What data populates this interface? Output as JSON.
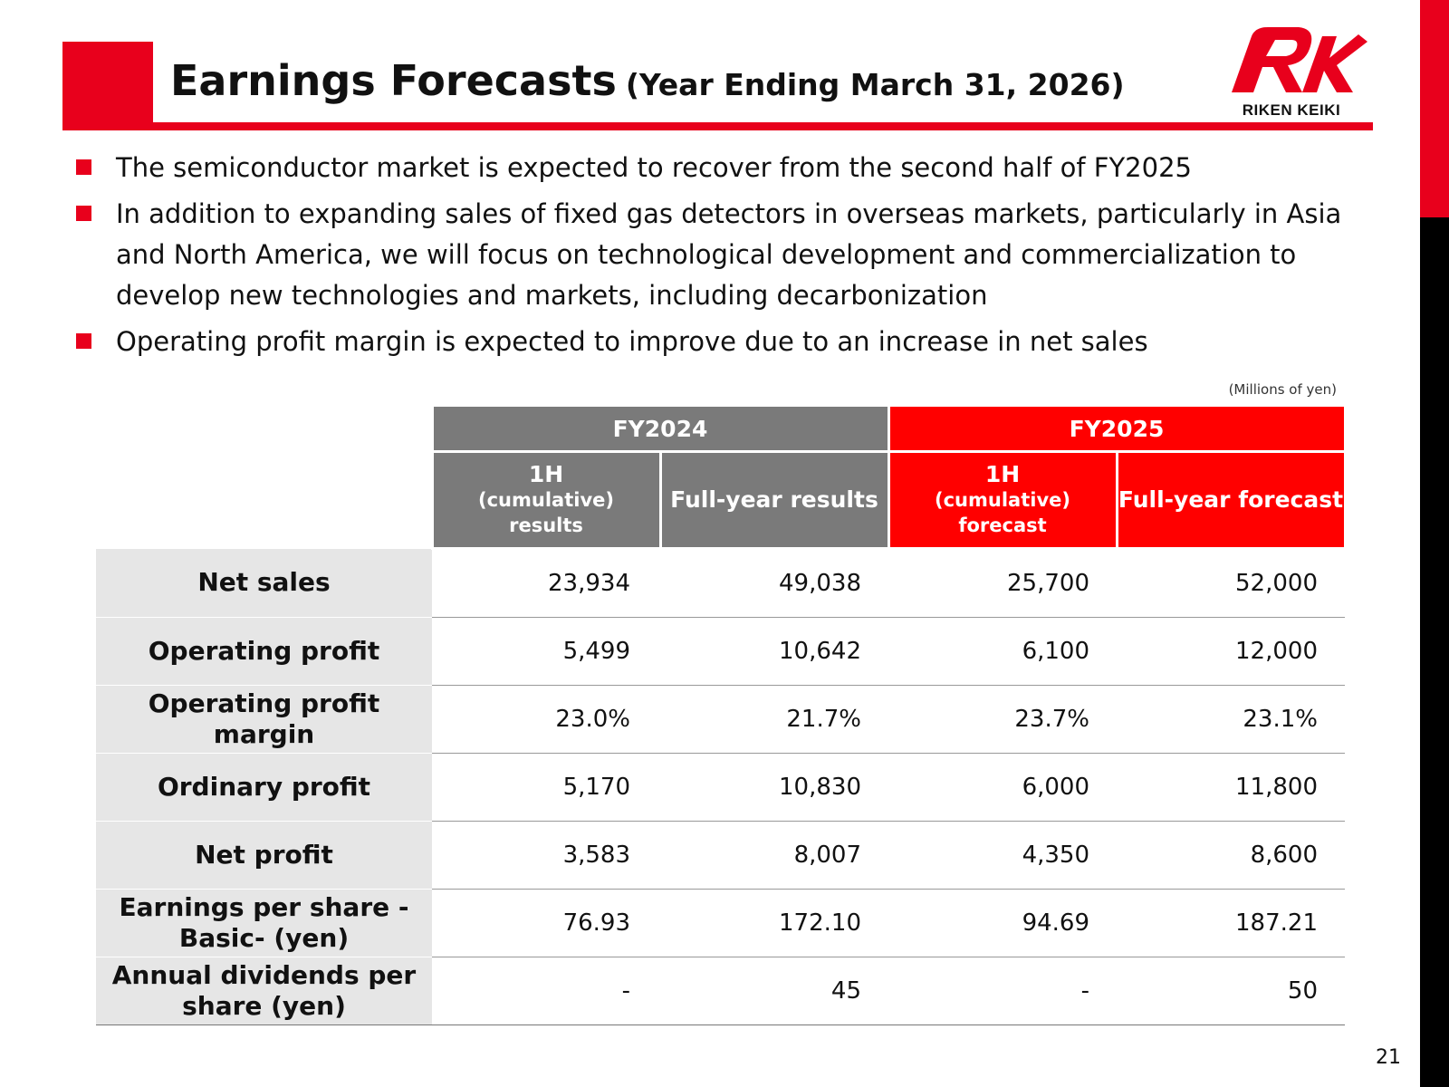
{
  "header": {
    "title_main": "Earnings Forecasts",
    "title_sub": "(Year Ending March 31, 2026)",
    "accent_color": "#e8001c",
    "logo_text": "RIKEN KEIKI"
  },
  "bullets": [
    "The semiconductor market is expected to recover from the second half of FY2025",
    "In addition to expanding sales of fixed gas detectors in overseas markets, particularly in Asia and North America, we will focus on technological development and commercialization to develop new technologies and markets, including decarbonization",
    "Operating profit margin is expected to improve due to an increase in net sales"
  ],
  "table": {
    "unit_note": "(Millions of yen)",
    "groups": [
      "FY2024",
      "FY2025"
    ],
    "columns": [
      {
        "line1": "1H",
        "line2": "(cumulative)",
        "line3": "results"
      },
      {
        "line1": "Full-year results"
      },
      {
        "line1": "1H",
        "line2": "(cumulative)",
        "line3": "forecast"
      },
      {
        "line1": "Full-year forecast"
      }
    ],
    "rows": [
      {
        "label": "Net sales",
        "values": [
          "23,934",
          "49,038",
          "25,700",
          "52,000"
        ]
      },
      {
        "label": "Operating profit",
        "values": [
          "5,499",
          "10,642",
          "6,100",
          "12,000"
        ]
      },
      {
        "label": "Operating profit margin",
        "values": [
          "23.0%",
          "21.7%",
          "23.7%",
          "23.1%"
        ]
      },
      {
        "label": "Ordinary profit",
        "values": [
          "5,170",
          "10,830",
          "6,000",
          "11,800"
        ]
      },
      {
        "label": "Net profit",
        "values": [
          "3,583",
          "8,007",
          "4,350",
          "8,600"
        ]
      },
      {
        "label": "Earnings per share -Basic- (yen)",
        "values": [
          "76.93",
          "172.10",
          "94.69",
          "187.21"
        ]
      },
      {
        "label": "Annual dividends per share (yen)",
        "values": [
          "-",
          "45",
          "-",
          "50"
        ]
      }
    ]
  },
  "page_number": "21"
}
